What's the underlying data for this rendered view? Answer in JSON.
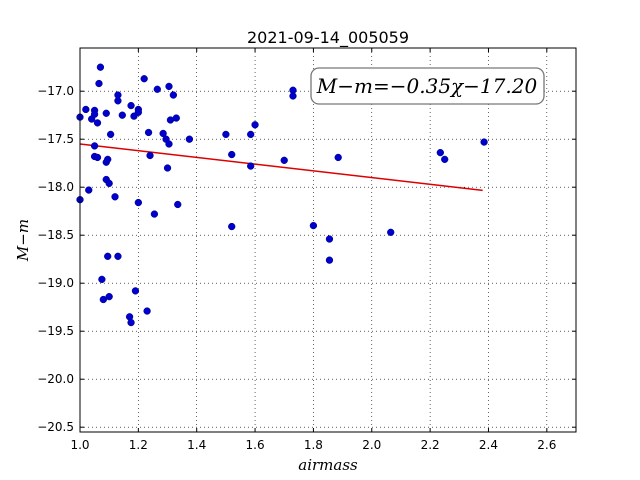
{
  "chart_data": {
    "type": "scatter",
    "title": "2021-09-14_005059",
    "xlabel": "airmass",
    "ylabel": "M−m",
    "xlim": [
      1.0,
      2.7
    ],
    "ylim": [
      -20.55,
      -16.55
    ],
    "grid": true,
    "x_ticks": [
      "1.0",
      "1.2",
      "1.4",
      "1.6",
      "1.8",
      "2.0",
      "2.2",
      "2.4",
      "2.6"
    ],
    "y_ticks": [
      "−17.0",
      "−17.5",
      "−18.0",
      "−18.5",
      "−19.0",
      "−19.5",
      "−20.0",
      "−20.5"
    ],
    "annotation": "M−m=−0.35χ−17.20",
    "marker_color": "#0000cc",
    "fit_color": "#dd0000",
    "fit": {
      "slope": -0.35,
      "intercept": -17.2,
      "x_range": [
        1.0,
        2.38
      ]
    },
    "points": [
      [
        1.0,
        -17.27
      ],
      [
        1.0,
        -18.13
      ],
      [
        1.02,
        -17.19
      ],
      [
        1.03,
        -18.03
      ],
      [
        1.04,
        -17.29
      ],
      [
        1.05,
        -17.2
      ],
      [
        1.05,
        -17.24
      ],
      [
        1.05,
        -17.57
      ],
      [
        1.05,
        -17.68
      ],
      [
        1.06,
        -17.33
      ],
      [
        1.06,
        -17.69
      ],
      [
        1.065,
        -16.92
      ],
      [
        1.07,
        -16.75
      ],
      [
        1.075,
        -18.96
      ],
      [
        1.08,
        -19.17
      ],
      [
        1.09,
        -17.23
      ],
      [
        1.09,
        -17.92
      ],
      [
        1.09,
        -17.74
      ],
      [
        1.095,
        -17.71
      ],
      [
        1.095,
        -18.72
      ],
      [
        1.1,
        -19.14
      ],
      [
        1.1,
        -17.96
      ],
      [
        1.105,
        -17.45
      ],
      [
        1.12,
        -18.1
      ],
      [
        1.13,
        -17.04
      ],
      [
        1.13,
        -17.1
      ],
      [
        1.13,
        -18.72
      ],
      [
        1.145,
        -17.25
      ],
      [
        1.17,
        -19.35
      ],
      [
        1.175,
        -19.41
      ],
      [
        1.175,
        -17.15
      ],
      [
        1.185,
        -17.26
      ],
      [
        1.19,
        -19.08
      ],
      [
        1.2,
        -17.19
      ],
      [
        1.2,
        -17.22
      ],
      [
        1.2,
        -18.16
      ],
      [
        1.22,
        -16.87
      ],
      [
        1.23,
        -19.29
      ],
      [
        1.235,
        -17.43
      ],
      [
        1.24,
        -17.67
      ],
      [
        1.255,
        -18.28
      ],
      [
        1.265,
        -16.98
      ],
      [
        1.285,
        -17.44
      ],
      [
        1.295,
        -17.5
      ],
      [
        1.3,
        -17.8
      ],
      [
        1.305,
        -16.95
      ],
      [
        1.305,
        -17.55
      ],
      [
        1.31,
        -17.3
      ],
      [
        1.32,
        -17.04
      ],
      [
        1.33,
        -17.28
      ],
      [
        1.335,
        -18.18
      ],
      [
        1.375,
        -17.5
      ],
      [
        1.5,
        -17.45
      ],
      [
        1.52,
        -17.66
      ],
      [
        1.52,
        -18.41
      ],
      [
        1.585,
        -17.45
      ],
      [
        1.585,
        -17.78
      ],
      [
        1.6,
        -17.35
      ],
      [
        1.7,
        -17.72
      ],
      [
        1.73,
        -16.99
      ],
      [
        1.73,
        -17.05
      ],
      [
        1.8,
        -18.4
      ],
      [
        1.855,
        -18.54
      ],
      [
        1.855,
        -18.76
      ],
      [
        1.885,
        -17.69
      ],
      [
        2.065,
        -18.47
      ],
      [
        2.235,
        -17.64
      ],
      [
        2.25,
        -17.71
      ],
      [
        2.385,
        -17.53
      ]
    ]
  }
}
